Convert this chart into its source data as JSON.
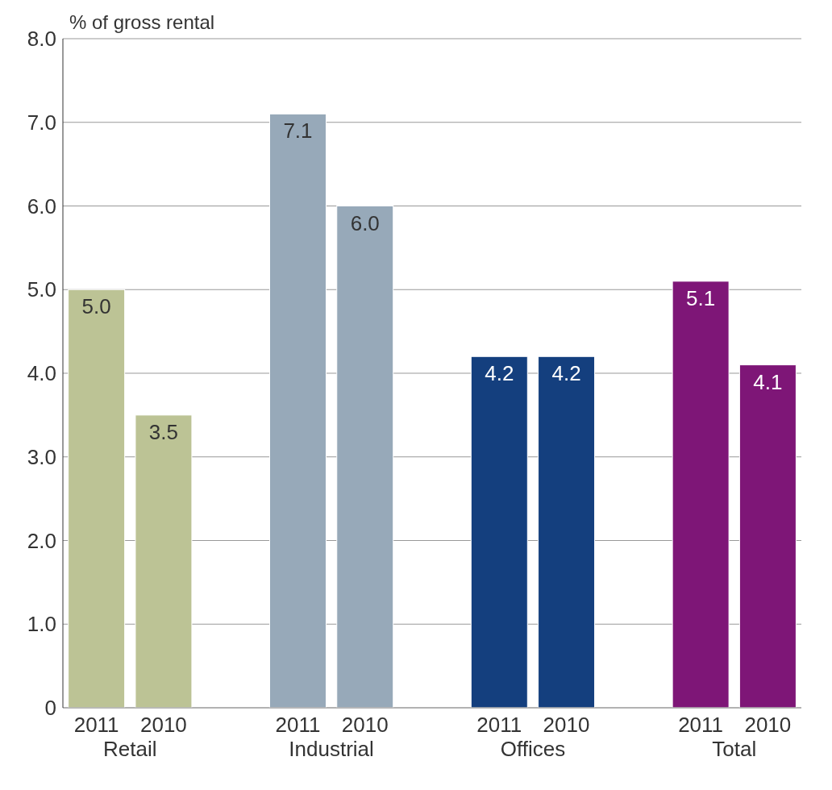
{
  "chart_data": {
    "type": "bar",
    "ylabel": "% of gross rental",
    "categories": [
      "2011",
      "2010",
      "2011",
      "2010",
      "2011",
      "2010",
      "2011",
      "2010"
    ],
    "values": [
      5.0,
      3.5,
      7.1,
      6.0,
      4.2,
      4.2,
      5.1,
      4.1
    ],
    "colors": [
      "#bcc395",
      "#bcc395",
      "#97a9b9",
      "#97a9b9",
      "#143f7e",
      "#143f7e",
      "#7e1677",
      "#7e1677"
    ],
    "value_labels": [
      "5.0",
      "3.5",
      "7.1",
      "6.0",
      "4.2",
      "4.2",
      "5.1",
      "4.1"
    ],
    "annotations": [
      "Retail",
      "Industrial",
      "Offices",
      "Total"
    ],
    "ylim": [
      0,
      8
    ],
    "yticks": [
      0,
      {
        "value": 1,
        "label": "1.0"
      },
      {
        "value": 2,
        "label": "2.0"
      },
      {
        "value": 3,
        "label": "3.0"
      },
      {
        "value": 4,
        "label": "4.0"
      },
      {
        "value": 5,
        "label": "5.0"
      },
      {
        "value": 6,
        "label": "6.0"
      },
      {
        "value": 7,
        "label": "7.0"
      },
      {
        "value": 8,
        "label": "8.0"
      }
    ],
    "grid": "y",
    "legend": false
  }
}
